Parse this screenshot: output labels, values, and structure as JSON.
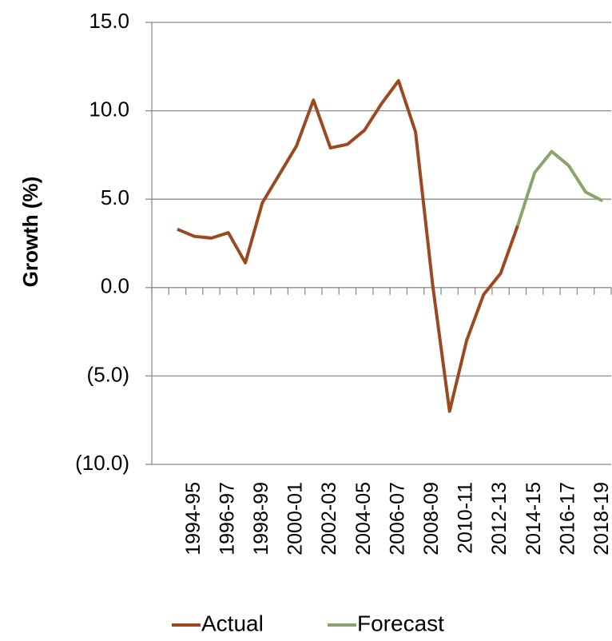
{
  "chart_data": {
    "type": "line",
    "y_label": "Growth (%)",
    "categories": [
      null,
      null,
      "1994-95",
      null,
      "1996-97",
      null,
      "1998-99",
      null,
      "2000-01",
      null,
      "2002-03",
      null,
      "2004-05",
      null,
      "2006-07",
      null,
      "2008-09",
      null,
      "2010-11",
      null,
      "2012-13",
      null,
      "2014-15",
      null,
      "2016-17",
      null,
      "2018-19"
    ],
    "series": [
      {
        "name": "Actual",
        "color": "#9a4a1e",
        "values": [
          null,
          3.3,
          2.9,
          2.8,
          3.1,
          1.4,
          4.8,
          6.4,
          8.0,
          10.6,
          7.9,
          8.1,
          8.9,
          10.4,
          11.7,
          8.8,
          0.2,
          -7.0,
          -3.0,
          -0.4,
          0.8,
          3.5,
          null,
          null,
          null,
          null,
          null
        ]
      },
      {
        "name": "Forecast",
        "color": "#8aa46c",
        "values": [
          null,
          null,
          null,
          null,
          null,
          null,
          null,
          null,
          null,
          null,
          null,
          null,
          null,
          null,
          null,
          null,
          null,
          null,
          null,
          null,
          null,
          3.5,
          6.5,
          7.7,
          6.9,
          5.4,
          4.9
        ]
      }
    ],
    "ylim": [
      -10,
      15
    ],
    "yticks": [
      {
        "value": -10,
        "label": "(10.0)"
      },
      {
        "value": -5,
        "label": "(5.0)"
      },
      {
        "value": 0,
        "label": "0.0"
      },
      {
        "value": 5,
        "label": "5.0"
      },
      {
        "value": 10,
        "label": "10.0"
      },
      {
        "value": 15,
        "label": "15.0"
      }
    ],
    "grid": true,
    "legend": "bottom"
  }
}
